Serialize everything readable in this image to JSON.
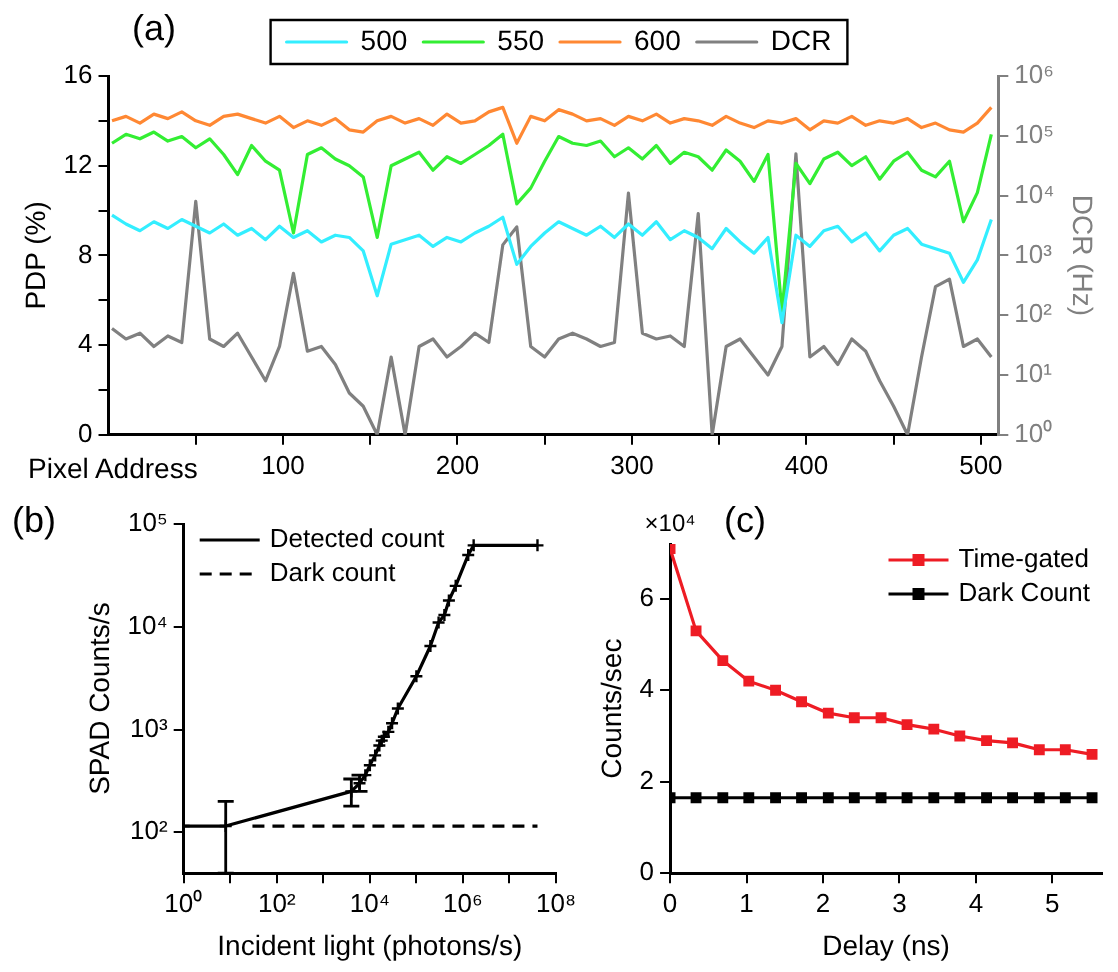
{
  "chart_data": [
    {
      "type": "line",
      "title": "(a)",
      "xlabel": "Pixel Address",
      "ylabel": "PDP (%)",
      "y2label": "DCR (Hz)",
      "log": "y2",
      "legend": "top",
      "marker": "none",
      "line_style": "solid",
      "grid": false,
      "x": [
        2,
        10,
        18,
        26,
        34,
        42,
        50,
        58,
        66,
        74,
        82,
        90,
        98,
        106,
        114,
        122,
        130,
        138,
        146,
        154,
        162,
        170,
        178,
        186,
        194,
        202,
        210,
        218,
        226,
        234,
        242,
        250,
        258,
        266,
        274,
        282,
        290,
        298,
        306,
        314,
        322,
        330,
        338,
        346,
        354,
        362,
        370,
        378,
        386,
        394,
        402,
        410,
        418,
        426,
        434,
        442,
        450,
        458,
        466,
        474,
        482,
        490,
        498,
        506
      ],
      "xlim": [
        0,
        510
      ],
      "xticks": [
        {
          "value": 50,
          "label": null
        },
        100,
        {
          "value": 150,
          "label": null
        },
        200,
        {
          "value": 250,
          "label": null
        },
        300,
        {
          "value": 350,
          "label": null
        },
        400,
        {
          "value": 450,
          "label": null
        },
        500
      ],
      "ylim": [
        0,
        16
      ],
      "yticks": [
        0,
        {
          "value": 2,
          "label": null
        },
        4,
        {
          "value": 6,
          "label": null
        },
        8,
        {
          "value": 10,
          "label": null
        },
        12,
        {
          "value": 14,
          "label": null
        },
        16
      ],
      "y2lim": [
        1,
        1000000
      ],
      "y2ticks": [
        {
          "value": 1,
          "label": "10⁰"
        },
        {
          "value": 10,
          "label": "10¹"
        },
        {
          "value": 100,
          "label": "10²"
        },
        {
          "value": 1000,
          "label": "10³"
        },
        {
          "value": 10000,
          "label": "10⁴"
        },
        {
          "value": 100000,
          "label": "10⁵"
        },
        {
          "value": 1000000,
          "label": "10⁶"
        }
      ],
      "series": [
        {
          "name": "500",
          "color": "#33eeff",
          "values": [
            9.8,
            9.4,
            9.1,
            9.5,
            9.2,
            9.6,
            9.3,
            9.0,
            9.4,
            8.9,
            9.2,
            8.7,
            9.3,
            8.8,
            9.1,
            8.6,
            8.9,
            8.8,
            8.2,
            6.2,
            8.5,
            8.7,
            8.9,
            8.4,
            8.8,
            8.6,
            9.0,
            9.3,
            9.7,
            7.6,
            8.4,
            9.0,
            9.5,
            9.2,
            8.9,
            9.3,
            8.8,
            9.4,
            8.9,
            9.5,
            8.7,
            9.1,
            8.8,
            8.3,
            9.2,
            8.6,
            8.1,
            8.8,
            5.0,
            8.9,
            8.4,
            9.1,
            9.3,
            8.6,
            9.0,
            8.2,
            8.9,
            9.2,
            8.5,
            8.3,
            8.1,
            6.8,
            7.8,
            9.6
          ]
        },
        {
          "name": "550",
          "color": "#33ee33",
          "values": [
            13.0,
            13.4,
            13.2,
            13.5,
            13.1,
            13.3,
            12.8,
            13.2,
            12.5,
            11.6,
            12.9,
            12.2,
            11.8,
            9.0,
            12.5,
            12.8,
            12.3,
            12.0,
            11.5,
            8.8,
            12.0,
            12.3,
            12.6,
            11.8,
            12.4,
            12.1,
            12.5,
            12.9,
            13.4,
            10.3,
            11.0,
            12.2,
            13.3,
            13.0,
            12.9,
            13.1,
            12.4,
            12.8,
            12.3,
            12.9,
            12.1,
            12.6,
            12.4,
            11.8,
            12.7,
            12.2,
            11.3,
            12.5,
            5.5,
            12.1,
            11.2,
            12.3,
            12.6,
            12.0,
            12.4,
            11.4,
            12.2,
            12.6,
            11.8,
            11.5,
            12.2,
            9.5,
            10.8,
            13.4
          ]
        },
        {
          "name": "600",
          "color": "#ff8833",
          "values": [
            14.0,
            14.2,
            13.9,
            14.3,
            14.1,
            14.4,
            14.0,
            13.8,
            14.2,
            14.3,
            14.1,
            13.9,
            14.2,
            13.7,
            14.0,
            13.8,
            14.1,
            13.6,
            13.5,
            14.0,
            14.2,
            13.9,
            14.1,
            13.8,
            14.3,
            13.9,
            14.0,
            14.4,
            14.6,
            13.0,
            14.2,
            14.0,
            14.5,
            14.3,
            14.0,
            14.1,
            13.8,
            14.2,
            14.0,
            14.3,
            13.9,
            14.1,
            14.0,
            13.8,
            14.2,
            13.9,
            13.7,
            14.0,
            13.9,
            14.1,
            13.6,
            14.0,
            13.9,
            14.2,
            13.8,
            14.0,
            13.9,
            14.1,
            13.7,
            13.9,
            13.6,
            13.5,
            13.9,
            14.6
          ]
        },
        {
          "name": "DCR",
          "color": "#808080",
          "axis": "y2",
          "values": [
            60,
            40,
            50,
            30,
            45,
            35,
            8000,
            40,
            30,
            50,
            20,
            8,
            30,
            500,
            25,
            30,
            15,
            5,
            3,
            1,
            20,
            1,
            30,
            40,
            20,
            30,
            50,
            35,
            1500,
            3000,
            30,
            20,
            40,
            50,
            40,
            30,
            35,
            11000,
            50,
            40,
            45,
            30,
            5000,
            1,
            30,
            40,
            20,
            10,
            30,
            50000,
            20,
            30,
            15,
            40,
            25,
            8,
            3,
            1,
            20,
            300,
            400,
            30,
            40,
            20
          ]
        }
      ]
    },
    {
      "type": "line",
      "title": "(b)",
      "xlabel": "Incident light (photons/s)",
      "ylabel": "SPAD Counts/s",
      "log": "xy",
      "legend": "top left",
      "grid": false,
      "xlim": [
        1,
        100000000
      ],
      "xticks": [
        {
          "value": 1,
          "label": "10⁰"
        },
        {
          "value": 10,
          "label": null
        },
        {
          "value": 100,
          "label": "10²"
        },
        {
          "value": 1000,
          "label": null
        },
        {
          "value": 10000,
          "label": "10⁴"
        },
        {
          "value": 100000,
          "label": null
        },
        {
          "value": 1000000,
          "label": "10⁶"
        },
        {
          "value": 10000000,
          "label": null
        },
        {
          "value": 100000000,
          "label": "10⁸"
        }
      ],
      "ylim": [
        40,
        100000
      ],
      "yticks": [
        {
          "value": 100,
          "label": "10²"
        },
        {
          "value": 1000,
          "label": "10³"
        },
        {
          "value": 10000,
          "label": "10⁴"
        },
        {
          "value": 100000,
          "label": "10⁵"
        }
      ],
      "series": [
        {
          "name": "Detected count",
          "color": "#000000",
          "marker": "cross",
          "line_style": "solid",
          "x": [
            1,
            8,
            4000,
            6000,
            8000,
            10000,
            13000,
            16000,
            18000,
            20000,
            25000,
            30000,
            40000,
            100000,
            200000,
            300000,
            400000,
            500000,
            700000,
            1300000,
            1700000,
            40000000
          ],
          "values": [
            115,
            115,
            250,
            300,
            360,
            450,
            560,
            700,
            780,
            850,
            950,
            1150,
            1600,
            3300,
            6500,
            11000,
            13000,
            18000,
            25000,
            50000,
            62000,
            62000
          ],
          "errors": [
            null,
            [
              40,
              200
            ],
            [
              180,
              330
            ],
            [
              250,
              360
            ],
            null,
            null,
            null,
            null,
            null,
            null,
            null,
            null,
            null,
            null,
            null,
            null,
            null,
            null,
            null,
            null,
            null,
            null
          ]
        },
        {
          "name": "Dark count",
          "color": "#000000",
          "marker": "none",
          "line_style": "dashed",
          "x": [
            30,
            40000000
          ],
          "values": [
            115,
            115
          ]
        }
      ]
    },
    {
      "type": "line",
      "title": "(c)",
      "xlabel": "Delay (ns)",
      "ylabel": "Counts/sec",
      "legend": "top right",
      "marker": "square",
      "line_style": "solid",
      "grid": false,
      "annotations": [
        "×10⁴"
      ],
      "xlim": [
        0,
        5.65
      ],
      "xticks": [
        0,
        1,
        2,
        3,
        4,
        5
      ],
      "ylim": [
        0,
        7.2
      ],
      "yticks": [
        0,
        2,
        4,
        6
      ],
      "x": [
        0,
        0.34,
        0.69,
        1.03,
        1.38,
        1.72,
        2.07,
        2.41,
        2.76,
        3.1,
        3.45,
        3.79,
        4.14,
        4.48,
        4.83,
        5.17,
        5.52
      ],
      "series": [
        {
          "name": "Time-gated",
          "color": "#ee1c24",
          "values": [
            7.1,
            5.3,
            4.65,
            4.2,
            4.0,
            3.75,
            3.5,
            3.4,
            3.4,
            3.25,
            3.15,
            3.0,
            2.9,
            2.85,
            2.7,
            2.7,
            2.6
          ]
        },
        {
          "name": "Dark Count",
          "color": "#000000",
          "values": [
            1.65,
            1.65,
            1.65,
            1.65,
            1.65,
            1.65,
            1.65,
            1.65,
            1.65,
            1.65,
            1.65,
            1.65,
            1.65,
            1.65,
            1.65,
            1.65,
            1.65
          ]
        }
      ]
    }
  ]
}
